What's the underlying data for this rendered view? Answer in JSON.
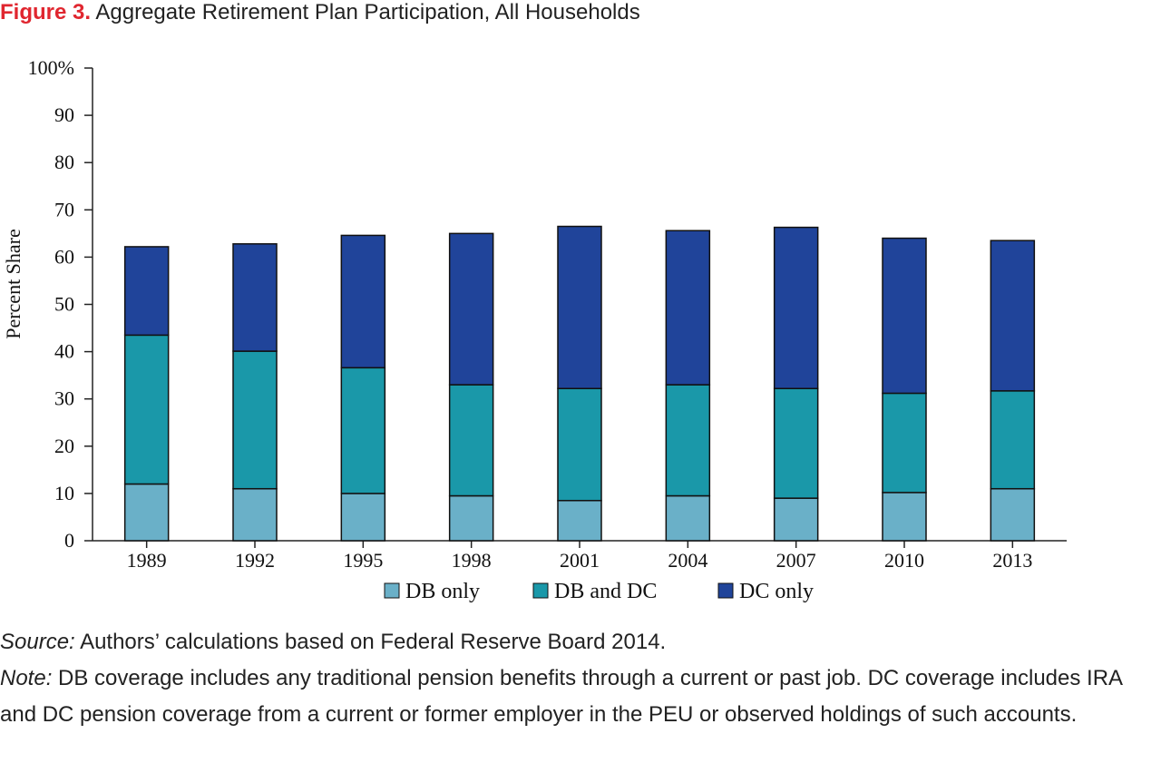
{
  "figure": {
    "label": "Figure 3.",
    "title": "Aggregate Retirement Plan Participation, All Households"
  },
  "chart_data": {
    "type": "bar",
    "stacked": true,
    "title": "Aggregate Retirement Plan Participation, All Households",
    "xlabel": "",
    "ylabel": "Percent Share",
    "ylim": [
      0,
      100
    ],
    "yticks": [
      "0",
      "10",
      "20",
      "30",
      "40",
      "50",
      "60",
      "70",
      "80",
      "90",
      "100%"
    ],
    "categories": [
      "1989",
      "1992",
      "1995",
      "1998",
      "2001",
      "2004",
      "2007",
      "2010",
      "2013"
    ],
    "series": [
      {
        "name": "DB only",
        "color": "#6ab0c8",
        "values": [
          12.0,
          11.0,
          10.0,
          9.5,
          8.5,
          9.5,
          9.0,
          10.2,
          11.0
        ]
      },
      {
        "name": "DB and DC",
        "color": "#1a98a9",
        "values": [
          31.5,
          29.1,
          26.6,
          23.5,
          23.7,
          23.5,
          23.2,
          21.0,
          20.7
        ]
      },
      {
        "name": "DC only",
        "color": "#20449a",
        "values": [
          18.7,
          22.7,
          28.0,
          32.0,
          34.3,
          32.6,
          34.1,
          32.8,
          31.8
        ]
      }
    ],
    "grid": false,
    "legend_position": "bottom"
  },
  "source": {
    "label": "Source:",
    "text": " Authors’ calculations based on Federal Reserve Board 2014."
  },
  "note": {
    "label": "Note:",
    "text": " DB coverage includes any traditional pension benefits through a current or past job. DC coverage includes IRA and DC pension coverage from a current or former employer in the PEU or observed holdings of such accounts."
  }
}
